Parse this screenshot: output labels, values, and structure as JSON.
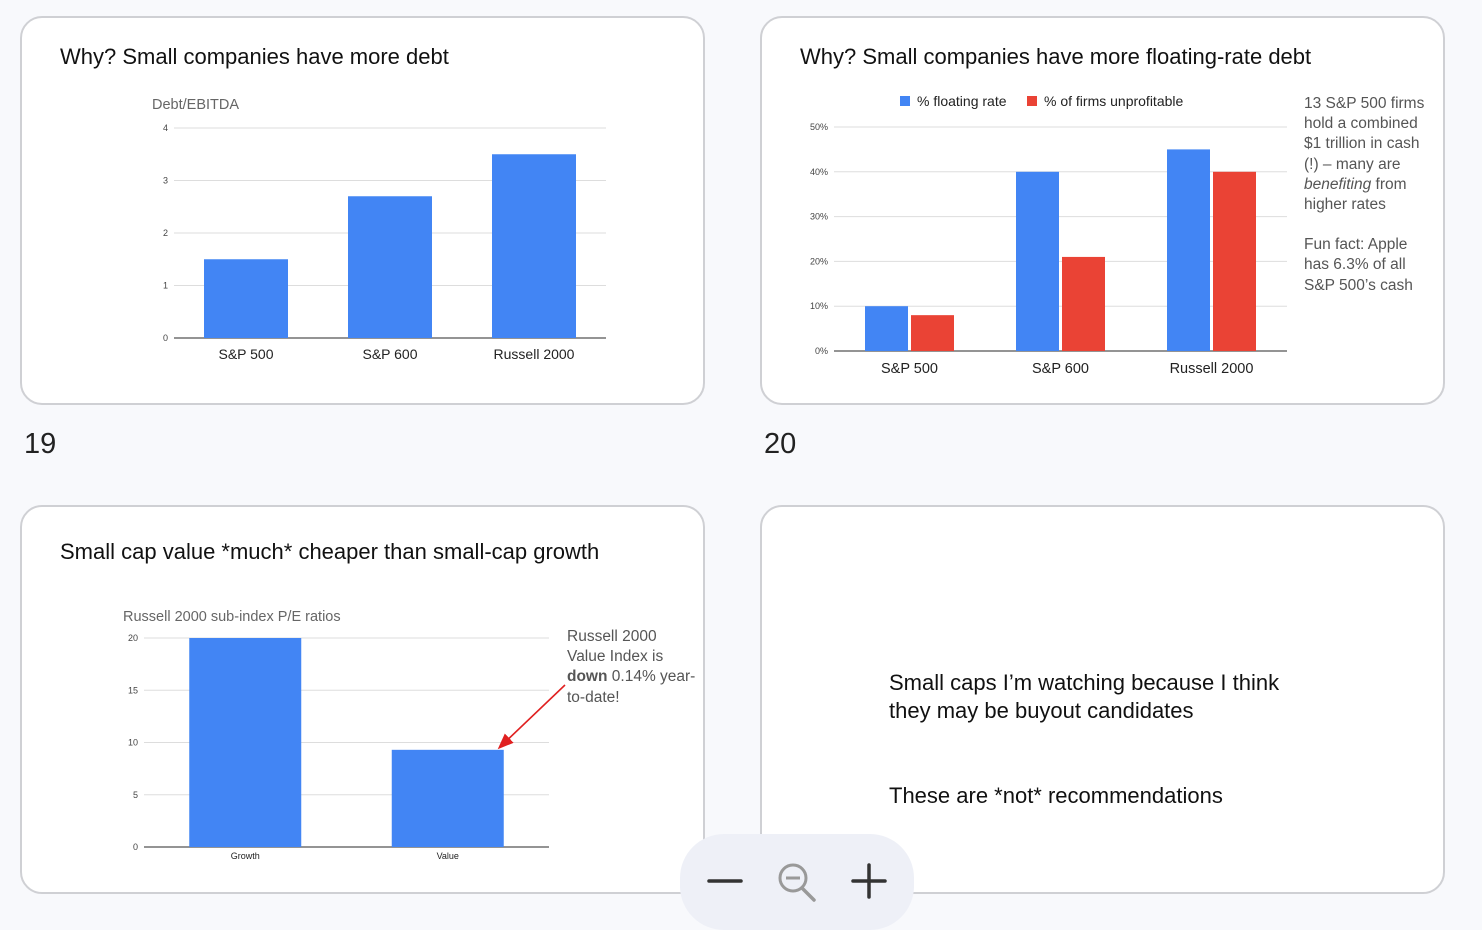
{
  "slides": [
    {
      "number": "19",
      "title": "Why? Small companies have more debt",
      "chart_data": {
        "type": "bar",
        "title": "Debt/EBITDA",
        "categories": [
          "S&P 500",
          "S&P 600",
          "Russell 2000"
        ],
        "values": [
          1.5,
          2.7,
          3.5
        ],
        "ylim": [
          0,
          4
        ],
        "yticks": [
          "0",
          "1",
          "2",
          "3",
          "4"
        ],
        "grid": true,
        "colors": [
          "#4285f4"
        ]
      }
    },
    {
      "number": "20",
      "title": "Why? Small companies have more floating-rate debt",
      "chart_data": {
        "type": "bar",
        "categories": [
          "S&P 500",
          "S&P 600",
          "Russell 2000"
        ],
        "series": [
          {
            "name": "% floating rate",
            "values": [
              10,
              40,
              45
            ],
            "color": "#4285f4"
          },
          {
            "name": "% of firms unprofitable",
            "values": [
              8,
              21,
              40
            ],
            "color": "#ea4335"
          }
        ],
        "ylim": [
          0,
          50
        ],
        "yticks": [
          "0%",
          "10%",
          "20%",
          "30%",
          "40%",
          "50%"
        ],
        "legend": "top",
        "grid": true
      },
      "note": {
        "line1": "13 S&P 500 firms hold a combined $1 trillion in cash (!) – many are",
        "emph": "benefiting",
        "line1_tail": " from higher rates",
        "line2": "Fun fact: Apple has 6.3% of all S&P 500’s cash"
      }
    },
    {
      "title": "Small cap value *much* cheaper than small-cap growth",
      "chart_data": {
        "type": "bar",
        "title": "Russell 2000 sub-index P/E ratios",
        "categories": [
          "Growth",
          "Value"
        ],
        "values": [
          20,
          9.3
        ],
        "ylim": [
          0,
          20
        ],
        "yticks": [
          "0",
          "5",
          "10",
          "15",
          "20"
        ],
        "grid": true,
        "colors": [
          "#4285f4"
        ]
      },
      "note": {
        "prefix": "Russell 2000 Value Index is ",
        "bold": "down",
        "suffix": " 0.14% year-to-date!"
      }
    },
    {
      "text1": "Small caps I’m watching because I think they may be buyout candidates",
      "text2": "These are *not* recommendations"
    }
  ],
  "zoom": {
    "zoom_out_icon": "minus-icon",
    "reset_icon": "magnifier-minus-icon",
    "zoom_in_icon": "plus-icon"
  }
}
